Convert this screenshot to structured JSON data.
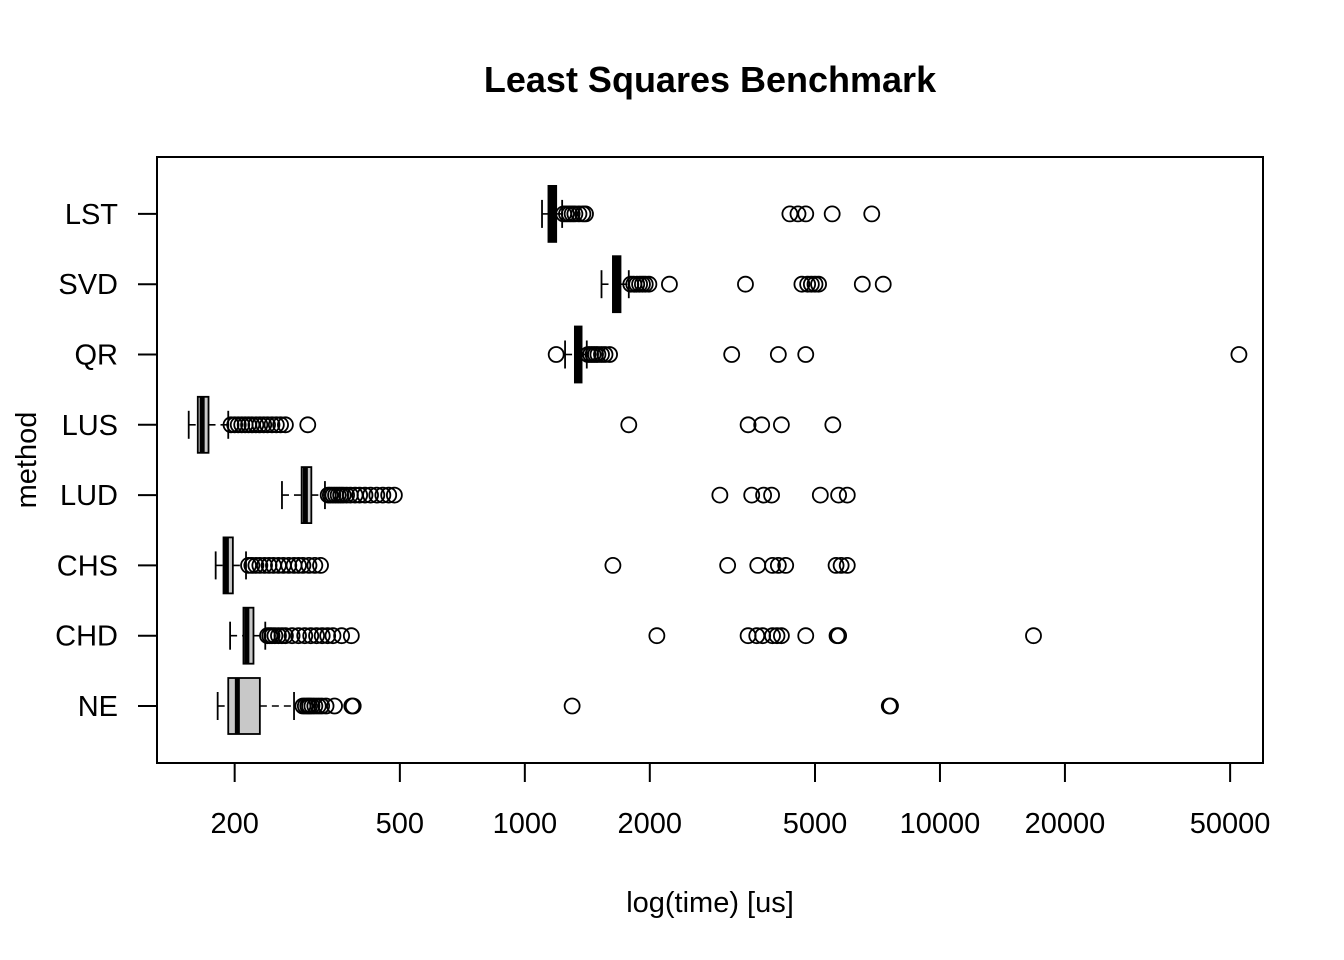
{
  "chart_data": {
    "type": "boxplot",
    "orientation": "horizontal",
    "title": "Least Squares Benchmark",
    "xlabel": "log(time) [us]",
    "ylabel": "method",
    "x_scale": "log",
    "xlim": [
      130,
      60000
    ],
    "x_ticks": [
      200,
      500,
      1000,
      2000,
      5000,
      10000,
      20000,
      50000
    ],
    "box_fill": {
      "NE": "#c8c8c8",
      "CHD": "#c8c8c8",
      "CHS": "#c8c8c8",
      "LUD": "#c8c8c8",
      "LUS": "#c8c8c8",
      "QR": "#000000",
      "SVD": "#000000",
      "LST": "#000000"
    },
    "series": [
      {
        "name": "NE",
        "whisker_low": 182,
        "q1": 193,
        "median": 203,
        "q3": 230,
        "whisker_high": 278,
        "outliers": [
          292,
          296,
          300,
          303,
          307,
          312,
          318,
          324,
          332,
          348,
          383,
          386,
          1300,
          7550,
          7600
        ]
      },
      {
        "name": "CHD",
        "whisker_low": 195,
        "q1": 210,
        "median": 214,
        "q3": 222,
        "whisker_high": 237,
        "outliers": [
          240,
          243,
          246,
          250,
          255,
          260,
          265,
          275,
          285,
          295,
          305,
          315,
          325,
          335,
          345,
          362,
          382,
          2080,
          3450,
          3620,
          3740,
          3950,
          4050,
          4150,
          4750,
          5650,
          5700,
          16800
        ]
      },
      {
        "name": "CHS",
        "whisker_low": 180,
        "q1": 188,
        "median": 191,
        "q3": 198,
        "whisker_high": 213,
        "outliers": [
          216,
          220,
          225,
          230,
          236,
          242,
          248,
          255,
          262,
          270,
          278,
          285,
          292,
          302,
          312,
          322,
          1630,
          3080,
          3640,
          3950,
          4080,
          4250,
          5620,
          5780,
          5980
        ]
      },
      {
        "name": "LUD",
        "whisker_low": 260,
        "q1": 290,
        "median": 296,
        "q3": 306,
        "whisker_high": 330,
        "outliers": [
          336,
          340,
          345,
          350,
          355,
          360,
          365,
          372,
          380,
          390,
          400,
          412,
          425,
          440,
          455,
          470,
          485,
          2950,
          3520,
          3760,
          3930,
          5150,
          5700,
          5980
        ]
      },
      {
        "name": "LUS",
        "whisker_low": 155,
        "q1": 163,
        "median": 167,
        "q3": 173,
        "whisker_high": 193,
        "outliers": [
          196,
          200,
          204,
          208,
          212,
          216,
          220,
          225,
          230,
          235,
          240,
          246,
          252,
          258,
          265,
          300,
          1780,
          3450,
          3720,
          4150,
          5520
        ]
      },
      {
        "name": "QR",
        "whisker_low": 1250,
        "q1": 1320,
        "median": 1340,
        "q3": 1370,
        "whisker_high": 1410,
        "outliers": [
          1190,
          1420,
          1440,
          1460,
          1480,
          1500,
          1530,
          1560,
          1600,
          3150,
          4080,
          4750,
          52500
        ]
      },
      {
        "name": "SVD",
        "whisker_low": 1530,
        "q1": 1630,
        "median": 1660,
        "q3": 1700,
        "whisker_high": 1780,
        "outliers": [
          1800,
          1830,
          1860,
          1890,
          1920,
          1950,
          1990,
          2230,
          3400,
          4650,
          4800,
          4900,
          5000,
          5100,
          6500,
          7300
        ]
      },
      {
        "name": "LST",
        "whisker_low": 1100,
        "q1": 1140,
        "median": 1160,
        "q3": 1190,
        "whisker_high": 1230,
        "outliers": [
          1240,
          1260,
          1280,
          1300,
          1320,
          1350,
          1380,
          1400,
          4350,
          4550,
          4750,
          5500,
          6850
        ]
      }
    ]
  }
}
